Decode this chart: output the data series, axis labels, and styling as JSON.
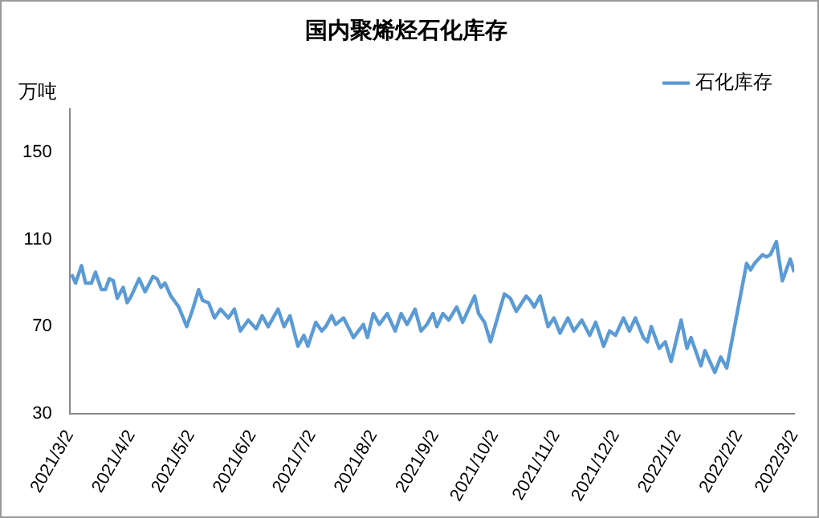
{
  "chart_data": {
    "type": "line",
    "title": "国内聚烯烃石化库存",
    "ylabel": "万吨",
    "xlim": [
      "2021-03-02",
      "2022-03-02"
    ],
    "xticks": [
      {
        "value": "2021-03-02",
        "label": "2021/3/2"
      },
      {
        "value": "2021-04-02",
        "label": "2021/4/2"
      },
      {
        "value": "2021-05-02",
        "label": "2021/5/2"
      },
      {
        "value": "2021-06-02",
        "label": "2021/6/2"
      },
      {
        "value": "2021-07-02",
        "label": "2021/7/2"
      },
      {
        "value": "2021-08-02",
        "label": "2021/8/2"
      },
      {
        "value": "2021-09-02",
        "label": "2021/9/2"
      },
      {
        "value": "2021-10-02",
        "label": "2021/10/2"
      },
      {
        "value": "2021-11-02",
        "label": "2021/11/2"
      },
      {
        "value": "2021-12-02",
        "label": "2021/12/2"
      },
      {
        "value": "2022-01-02",
        "label": "2022/1/2"
      },
      {
        "value": "2022-02-02",
        "label": "2022/2/2"
      },
      {
        "value": "2022-03-02",
        "label": "2022/3/2"
      }
    ],
    "ylim": [
      30,
      170
    ],
    "yticks": [
      30,
      70,
      110,
      150
    ],
    "grid": false,
    "legend": "top right",
    "marker": "none",
    "line_style": "solid",
    "series": [
      {
        "name": "石化库存",
        "color": "#5b9bd5",
        "x": [
          "2021-03-03",
          "2021-03-05",
          "2021-03-08",
          "2021-03-10",
          "2021-03-13",
          "2021-03-15",
          "2021-03-18",
          "2021-03-20",
          "2021-03-22",
          "2021-03-24",
          "2021-03-26",
          "2021-03-29",
          "2021-03-31",
          "2021-04-02",
          "2021-04-06",
          "2021-04-09",
          "2021-04-13",
          "2021-04-15",
          "2021-04-17",
          "2021-04-19",
          "2021-04-22",
          "2021-04-26",
          "2021-04-30",
          "2021-05-03",
          "2021-05-06",
          "2021-05-08",
          "2021-05-11",
          "2021-05-14",
          "2021-05-17",
          "2021-05-21",
          "2021-05-24",
          "2021-05-27",
          "2021-05-31",
          "2021-06-04",
          "2021-06-07",
          "2021-06-10",
          "2021-06-15",
          "2021-06-18",
          "2021-06-21",
          "2021-06-25",
          "2021-06-28",
          "2021-06-30",
          "2021-07-04",
          "2021-07-07",
          "2021-07-09",
          "2021-07-12",
          "2021-07-14",
          "2021-07-18",
          "2021-07-23",
          "2021-07-28",
          "2021-07-30",
          "2021-08-02",
          "2021-08-05",
          "2021-08-09",
          "2021-08-13",
          "2021-08-16",
          "2021-08-19",
          "2021-08-23",
          "2021-08-26",
          "2021-08-29",
          "2021-09-01",
          "2021-09-03",
          "2021-09-06",
          "2021-09-09",
          "2021-09-13",
          "2021-09-16",
          "2021-09-22",
          "2021-09-24",
          "2021-09-27",
          "2021-09-30",
          "2021-10-07",
          "2021-10-10",
          "2021-10-13",
          "2021-10-18",
          "2021-10-20",
          "2021-10-22",
          "2021-10-25",
          "2021-10-29",
          "2021-11-01",
          "2021-11-04",
          "2021-11-08",
          "2021-11-11",
          "2021-11-15",
          "2021-11-19",
          "2021-11-22",
          "2021-11-26",
          "2021-11-29",
          "2021-12-02",
          "2021-12-06",
          "2021-12-09",
          "2021-12-12",
          "2021-12-16",
          "2021-12-18",
          "2021-12-20",
          "2021-12-24",
          "2021-12-27",
          "2021-12-30",
          "2022-01-04",
          "2022-01-07",
          "2022-01-09",
          "2022-01-14",
          "2022-01-16",
          "2022-01-21",
          "2022-01-24",
          "2022-01-27",
          "2022-02-06",
          "2022-02-08",
          "2022-02-10",
          "2022-02-14",
          "2022-02-16",
          "2022-02-18",
          "2022-02-21",
          "2022-02-24",
          "2022-02-28",
          "2022-03-02"
        ],
        "values": [
          94,
          90,
          98,
          90,
          90,
          95,
          87,
          87,
          92,
          91,
          83,
          88,
          81,
          84,
          92,
          86,
          93,
          92,
          88,
          90,
          84,
          79,
          70,
          78,
          87,
          82,
          81,
          74,
          78,
          74,
          78,
          68,
          73,
          69,
          75,
          70,
          78,
          70,
          75,
          61,
          66,
          61,
          72,
          68,
          70,
          75,
          71,
          74,
          65,
          71,
          65,
          76,
          71,
          76,
          68,
          76,
          71,
          78,
          68,
          71,
          76,
          70,
          76,
          73,
          79,
          72,
          84,
          76,
          72,
          63,
          85,
          83,
          77,
          84,
          82,
          79,
          84,
          70,
          74,
          67,
          74,
          68,
          73,
          66,
          72,
          61,
          68,
          66,
          74,
          68,
          74,
          65,
          63,
          70,
          60,
          63,
          54,
          73,
          60,
          65,
          52,
          59,
          49,
          56,
          51,
          99,
          96,
          99,
          103,
          102,
          103,
          109,
          91,
          101,
          95
        ]
      }
    ]
  }
}
